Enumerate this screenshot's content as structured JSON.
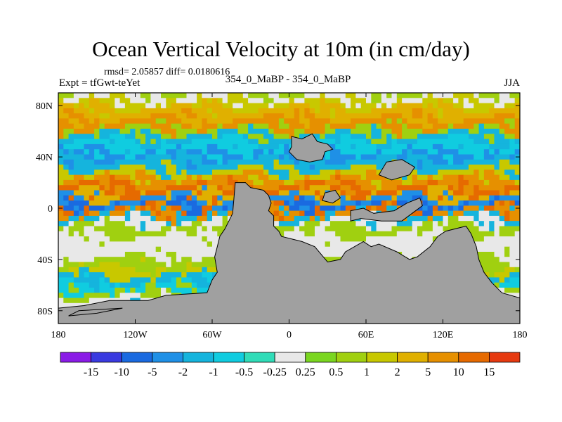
{
  "title": "Ocean Vertical Velocity at 10m (in cm/day)",
  "stats": "rmsd= 2.05857 diff= 0.0180616",
  "experiment": "Expt = tfGwt-teYet",
  "comparison": "354_0_MaBP - 354_0_MaBP",
  "season": "JJA",
  "map": {
    "lon_range": [
      -180,
      180
    ],
    "lat_range": [
      -90,
      90
    ],
    "land_color": "#a0a0a0",
    "ocean_background": "#e8e8e8",
    "x_ticks": [
      {
        "lon": -180,
        "label": "180"
      },
      {
        "lon": -120,
        "label": "120W"
      },
      {
        "lon": -60,
        "label": "60W"
      },
      {
        "lon": 0,
        "label": "0"
      },
      {
        "lon": 60,
        "label": "60E"
      },
      {
        "lon": 120,
        "label": "120E"
      },
      {
        "lon": 180,
        "label": "180"
      }
    ],
    "y_ticks": [
      {
        "lat": 80,
        "label": "80N"
      },
      {
        "lat": 40,
        "label": "40N"
      },
      {
        "lat": 0,
        "label": "0"
      },
      {
        "lat": -40,
        "label": "40S"
      },
      {
        "lat": -80,
        "label": "80S"
      }
    ]
  },
  "colorbar": {
    "colors": [
      "#8a1be6",
      "#3a3ae0",
      "#1a6ae0",
      "#1f90e6",
      "#15b4dd",
      "#10cce0",
      "#30dcb8",
      "#e8e8e8",
      "#7ad620",
      "#a0d010",
      "#c8c800",
      "#e0b000",
      "#e69000",
      "#e66a00",
      "#e63a10"
    ],
    "labels": [
      "-15",
      "-10",
      "-5",
      "-2",
      "-1",
      "-0.5",
      "-0.25",
      "0.25",
      "0.5",
      "1",
      "2",
      "5",
      "10",
      "15"
    ]
  }
}
